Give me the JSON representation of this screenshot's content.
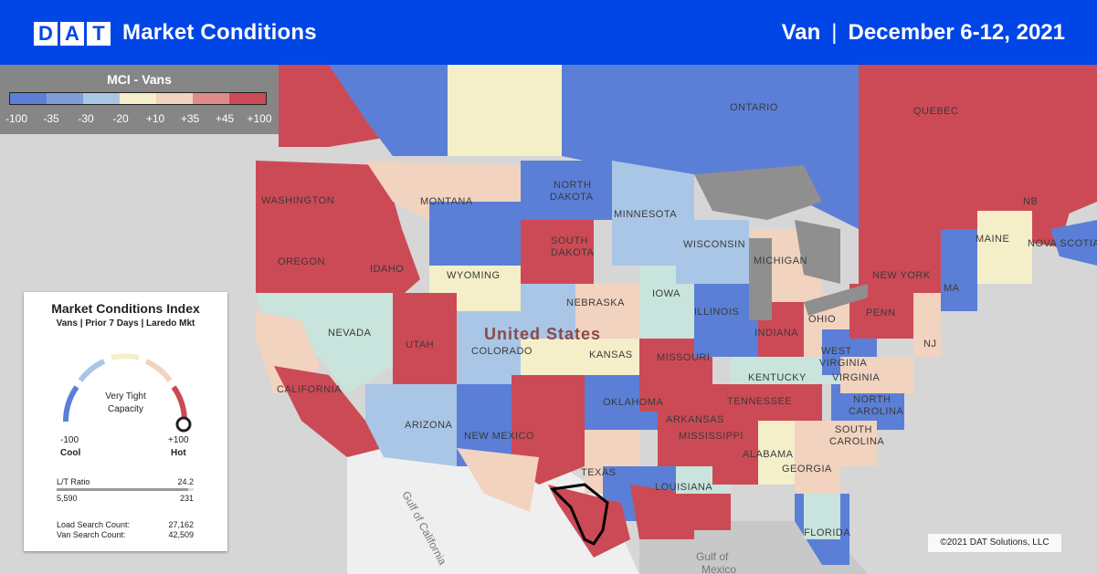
{
  "header": {
    "logo_letters": [
      "D",
      "A",
      "T"
    ],
    "title": "Market Conditions",
    "equipment": "Van",
    "separator": "|",
    "date_range": "December 6-12, 2021"
  },
  "legend": {
    "title": "MCI - Vans",
    "ticks": [
      "-100",
      "-35",
      "-30",
      "-20",
      "+10",
      "+35",
      "+45",
      "+100"
    ],
    "colors": [
      "#5b7fd6",
      "#7f9ed8",
      "#a9c6e6",
      "#f4efc9",
      "#f1d3bf",
      "#e08a8c",
      "#cc4a55"
    ]
  },
  "index_card": {
    "title": "Market Conditions Index",
    "subtitle": "Vans | Prior 7 Days | Laredo Mkt",
    "status_line1": "Very Tight",
    "status_line2": "Capacity",
    "min_value": "-100",
    "max_value": "+100",
    "min_label": "Cool",
    "max_label": "Hot",
    "lt_ratio_label": "L/T Ratio",
    "lt_ratio_value": "24.2",
    "loads": "5,590",
    "trucks": "231",
    "load_search_label": "Load Search Count:",
    "load_search_value": "27,162",
    "van_search_label": "Van Search Count:",
    "van_search_value": "42,509"
  },
  "map_labels": {
    "ontario": "ONTARIO",
    "quebec": "QUEBEC",
    "north_dakota_1": "NORTH",
    "north_dakota_2": "DAKOTA",
    "south_dakota_1": "SOUTH",
    "south_dakota_2": "DAKOTA",
    "montana": "MONTANA",
    "washington": "WASHINGTON",
    "oregon": "OREGON",
    "idaho": "IDAHO",
    "wyoming": "WYOMING",
    "nevada": "NEVADA",
    "utah": "UTAH",
    "colorado": "COLORADO",
    "california": "CALIFORNIA",
    "arizona": "ARIZONA",
    "new_mexico": "NEW MEXICO",
    "nebraska": "NEBRASKA",
    "kansas": "KANSAS",
    "oklahoma": "OKLAHOMA",
    "texas": "TEXAS",
    "minnesota": "MINNESOTA",
    "iowa": "IOWA",
    "missouri": "MISSOURI",
    "arkansas": "ARKANSAS",
    "louisiana": "LOUISIANA",
    "wisconsin": "WISCONSIN",
    "illinois": "ILLINOIS",
    "michigan": "MICHIGAN",
    "indiana": "INDIANA",
    "ohio": "OHIO",
    "kentucky": "KENTUCKY",
    "tennessee": "TENNESSEE",
    "mississippi": "MISSISSIPPI",
    "alabama": "ALABAMA",
    "georgia": "GEORGIA",
    "florida": "FLORIDA",
    "south_carolina_1": "SOUTH",
    "south_carolina_2": "CAROLINA",
    "north_carolina_1": "NORTH",
    "north_carolina_2": "CAROLINA",
    "virginia": "VIRGINIA",
    "west_virginia_1": "WEST",
    "west_virginia_2": "VIRGINIA",
    "penn": "PENN",
    "new_york": "NEW YORK",
    "maine": "MAINE",
    "nova_scotia": "NOVA SCOTIA",
    "nb": "NB",
    "nj": "NJ",
    "ma": "MA",
    "united_states": "United States",
    "gulf_of_mexico_1": "Gulf of",
    "gulf_of_mexico_2": "Mexico",
    "gulf_of_california": "Gulf of California"
  },
  "copyright": "©2021 DAT Solutions, LLC"
}
